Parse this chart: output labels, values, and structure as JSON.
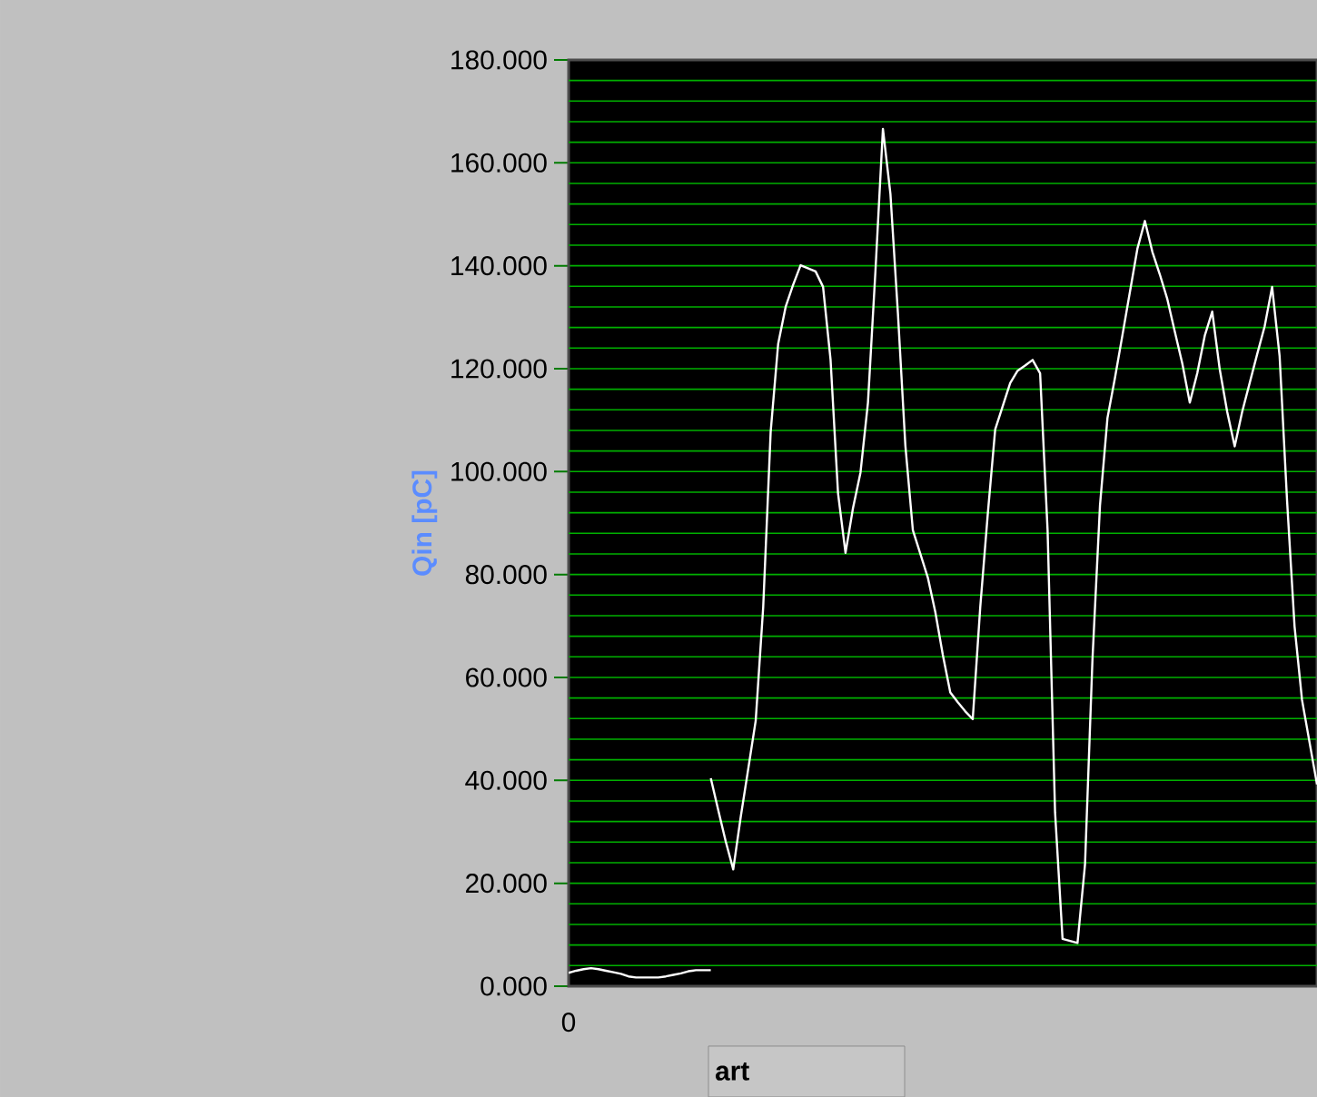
{
  "chart_data": {
    "type": "line",
    "ylabel": "Qin [pC]",
    "ylim": [
      0,
      180
    ],
    "yticks": [
      {
        "value": 4,
        "label": null
      },
      {
        "value": 8,
        "label": null
      },
      {
        "value": 12,
        "label": null
      },
      {
        "value": 16,
        "label": null
      },
      {
        "value": 24,
        "label": null
      },
      {
        "value": 28,
        "label": null
      },
      {
        "value": 32,
        "label": null
      },
      {
        "value": 36,
        "label": null
      },
      {
        "value": 44,
        "label": null
      },
      {
        "value": 48,
        "label": null
      },
      {
        "value": 52,
        "label": null
      },
      {
        "value": 56,
        "label": null
      },
      {
        "value": 64,
        "label": null
      },
      {
        "value": 68,
        "label": null
      },
      {
        "value": 72,
        "label": null
      },
      {
        "value": 76,
        "label": null
      },
      {
        "value": 84,
        "label": null
      },
      {
        "value": 88,
        "label": null
      },
      {
        "value": 92,
        "label": null
      },
      {
        "value": 96,
        "label": null
      },
      {
        "value": 104,
        "label": null
      },
      {
        "value": 108,
        "label": null
      },
      {
        "value": 112,
        "label": null
      },
      {
        "value": 116,
        "label": null
      },
      {
        "value": 124,
        "label": null
      },
      {
        "value": 128,
        "label": null
      },
      {
        "value": 132,
        "label": null
      },
      {
        "value": 136,
        "label": null
      },
      {
        "value": 144,
        "label": null
      },
      {
        "value": 148,
        "label": null
      },
      {
        "value": 152,
        "label": null
      },
      {
        "value": 156,
        "label": null
      },
      {
        "value": 164,
        "label": null
      },
      {
        "value": 168,
        "label": null
      },
      {
        "value": 172,
        "label": null
      },
      {
        "value": 176,
        "label": null
      },
      {
        "value": 0,
        "label": "0.000"
      },
      {
        "value": 20,
        "label": "20.000"
      },
      {
        "value": 40,
        "label": "40.000"
      },
      {
        "value": 60,
        "label": "60.000"
      },
      {
        "value": 80,
        "label": "80.000"
      },
      {
        "value": 100,
        "label": "100.000"
      },
      {
        "value": 120,
        "label": "120.000"
      },
      {
        "value": 140,
        "label": "140.000"
      },
      {
        "value": 160,
        "label": "160.000"
      },
      {
        "value": 180,
        "label": "180.000"
      }
    ],
    "grid": "y",
    "annotations": [
      "0",
      "art"
    ],
    "categories": [
      null,
      null,
      null,
      null,
      null,
      null,
      null,
      null,
      null,
      null,
      null,
      null,
      null,
      null,
      null,
      null,
      null,
      null,
      null,
      null,
      null,
      null,
      null,
      null,
      null,
      null,
      null,
      null,
      null,
      null,
      null,
      null,
      null,
      null,
      null,
      null,
      null,
      null,
      null,
      null,
      null,
      null,
      null,
      null,
      null,
      null,
      null,
      null,
      null,
      null,
      null,
      null,
      null,
      null,
      null,
      null,
      null,
      null,
      null,
      null,
      null,
      null,
      null,
      null,
      null,
      null,
      null,
      null,
      null,
      null,
      null,
      null,
      null,
      null,
      null,
      null,
      null,
      null,
      null,
      null,
      null,
      null,
      null,
      null,
      null,
      null,
      null,
      null,
      null,
      null,
      null,
      null,
      null,
      null,
      null,
      null,
      null,
      null,
      null,
      null,
      null
    ],
    "series": [
      {
        "color": "#ffffff",
        "values": [
          2.6,
          3.0,
          3.3,
          3.5,
          3.3,
          3.0,
          2.7,
          2.4,
          1.9,
          1.7,
          1.7,
          1.7,
          1.7,
          1.9,
          2.2,
          2.5,
          2.9,
          3.1,
          3.1,
          3.1,
          null,
          null,
          null,
          null,
          null,
          null,
          null,
          null,
          null,
          null,
          null,
          null,
          null,
          null,
          null,
          null,
          null,
          null,
          null,
          null,
          null,
          null,
          null,
          null,
          null,
          null,
          null,
          null,
          null,
          null,
          null,
          null,
          null,
          null,
          null,
          null,
          null,
          null,
          null,
          null,
          null,
          null,
          null,
          null,
          null,
          null,
          null,
          null,
          null,
          null,
          null,
          null,
          null,
          null,
          null,
          null,
          null,
          null,
          null,
          null,
          null,
          null,
          null,
          null,
          null,
          null,
          null,
          null,
          null,
          null,
          null,
          null,
          null,
          null,
          null,
          null,
          null,
          null,
          null,
          null,
          null
        ]
      },
      {
        "color": "#ffffff",
        "values": [
          null,
          null,
          null,
          null,
          null,
          null,
          null,
          null,
          null,
          null,
          null,
          null,
          null,
          null,
          null,
          null,
          null,
          null,
          null,
          40.4,
          34.2,
          28.1,
          22.7,
          32.9,
          42.2,
          51.6,
          73.6,
          107.7,
          124.8,
          132.0,
          136.3,
          140.1,
          139.5,
          138.9,
          135.9,
          121.8,
          95.8,
          84.2,
          92.9,
          99.8,
          113.4,
          139.0,
          166.6,
          154.0,
          130.8,
          105.0,
          88.6,
          84.0,
          79.4,
          72.7,
          64.4,
          57.1,
          55.2,
          53.4,
          51.9,
          73.6,
          91.6,
          108.2,
          112.7,
          117.2,
          119.6,
          120.6,
          121.7,
          119.1,
          88.6,
          33.8,
          9.2,
          8.8,
          8.4,
          23.6,
          63.6,
          93.4,
          110.4,
          118.2,
          126.5,
          134.9,
          143.3,
          148.7,
          142.7,
          138.3,
          133.5,
          127.2,
          121.0,
          113.4,
          119.1,
          126.4,
          131.1,
          119.9,
          111.6,
          104.9,
          111.6,
          117.2,
          122.8,
          128.2,
          135.9,
          122.5,
          94.3,
          69.9,
          55.6,
          47.4,
          39.2
        ]
      }
    ]
  }
}
